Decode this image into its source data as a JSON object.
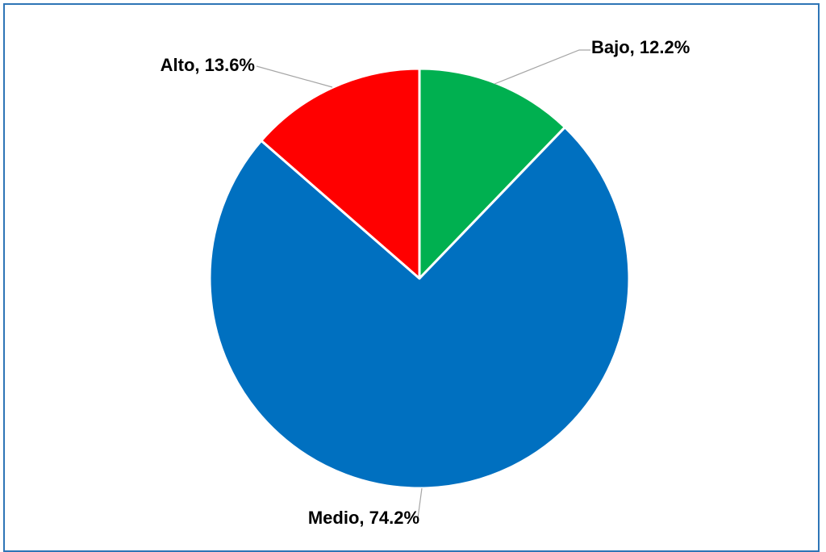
{
  "chart_data": {
    "type": "pie",
    "slices": [
      {
        "name": "Bajo",
        "value": 12.2,
        "label": "Bajo, 12.2%",
        "color": "#00b050"
      },
      {
        "name": "Medio",
        "value": 74.2,
        "label": "Medio, 74.2%",
        "color": "#0070c0"
      },
      {
        "name": "Alto",
        "value": 13.6,
        "label": "Alto, 13.6%",
        "color": "#ff0000"
      }
    ],
    "start": "12 o'clock",
    "direction": "clockwise",
    "frame_border_color": "#2e75b6",
    "slice_border_color": "#ffffff",
    "leader_line_color": "#a6a6a6"
  }
}
